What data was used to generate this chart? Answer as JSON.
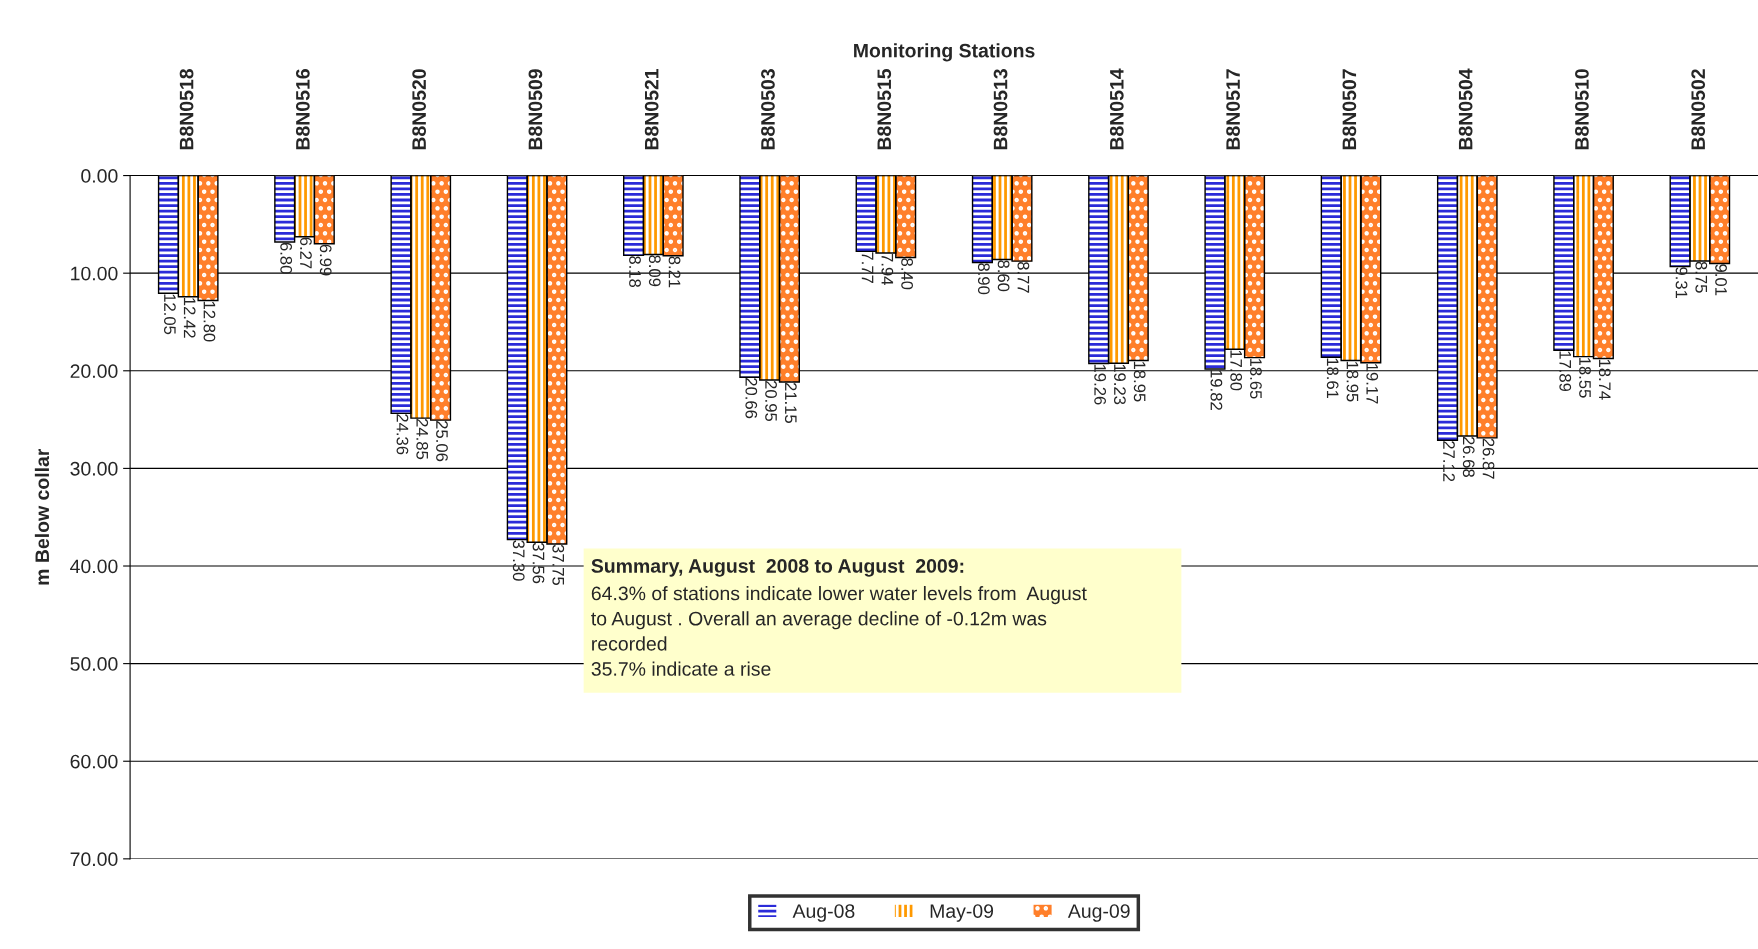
{
  "chart_data": {
    "type": "bar",
    "xlabel": "Monitoring Stations",
    "ylabel": "m Below collar",
    "categories": [
      "B8N0518",
      "B8N0516",
      "B8N0520",
      "B8N0509",
      "B8N0521",
      "B8N0503",
      "B8N0515",
      "B8N0513",
      "B8N0514",
      "B8N0517",
      "B8N0507",
      "B8N0504",
      "B8N0510",
      "B8N0502"
    ],
    "series": [
      {
        "name": "Aug-08",
        "color": "#2b2bd9",
        "values": [
          12.05,
          6.8,
          24.36,
          37.3,
          8.18,
          20.66,
          7.77,
          8.9,
          19.26,
          19.82,
          18.61,
          27.12,
          17.89,
          9.31
        ],
        "value_labels": [
          "12.05",
          "6.80",
          "24.36",
          "37.30",
          "8.18",
          "20.66",
          "7.77",
          "8.90",
          "19.26",
          "19.82",
          "18.61",
          "27.12",
          "17.89",
          "9.31"
        ]
      },
      {
        "name": "May-09",
        "color": "#ff9900",
        "values": [
          12.42,
          6.27,
          24.85,
          37.56,
          8.09,
          20.95,
          7.94,
          8.6,
          19.23,
          17.8,
          18.95,
          26.68,
          18.55,
          8.75
        ],
        "value_labels": [
          "12.42",
          "6.27",
          "24.85",
          "37.56",
          "8.09",
          "20.95",
          "7.94",
          "8.60",
          "19.23",
          "17.80",
          "18.95",
          "26.68",
          "18.55",
          "8.75"
        ]
      },
      {
        "name": "Aug-09",
        "color": "#ff7f2a",
        "values": [
          12.8,
          6.99,
          25.06,
          37.75,
          8.21,
          21.15,
          8.4,
          8.77,
          18.95,
          18.65,
          19.17,
          26.87,
          18.74,
          9.01
        ],
        "value_labels": [
          "12.80",
          "6.99",
          "25.06",
          "37.75",
          "8.21",
          "21.15",
          "8.40",
          "8.77",
          "18.95",
          "18.65",
          "19.17",
          "26.87",
          "18.74",
          "9.01"
        ]
      }
    ],
    "ylim": [
      70,
      0
    ],
    "yticks": [
      {
        "value": 0,
        "label": "0.00"
      },
      {
        "value": 10,
        "label": "10.00"
      },
      {
        "value": 20,
        "label": "20.00"
      },
      {
        "value": 30,
        "label": "30.00"
      },
      {
        "value": 40,
        "label": "40.00"
      },
      {
        "value": 50,
        "label": "50.00"
      },
      {
        "value": 60,
        "label": "60.00"
      },
      {
        "value": 70,
        "label": "70.00"
      }
    ],
    "grid": "y",
    "legend": "bottom",
    "annotations": [
      "Summary, August  2008 to August  2009:",
      "64.3% of stations indicate lower water levels from  August\nto August . Overall an average decline of -0.12m was\nrecorded\n35.7% indicate a rise"
    ]
  }
}
